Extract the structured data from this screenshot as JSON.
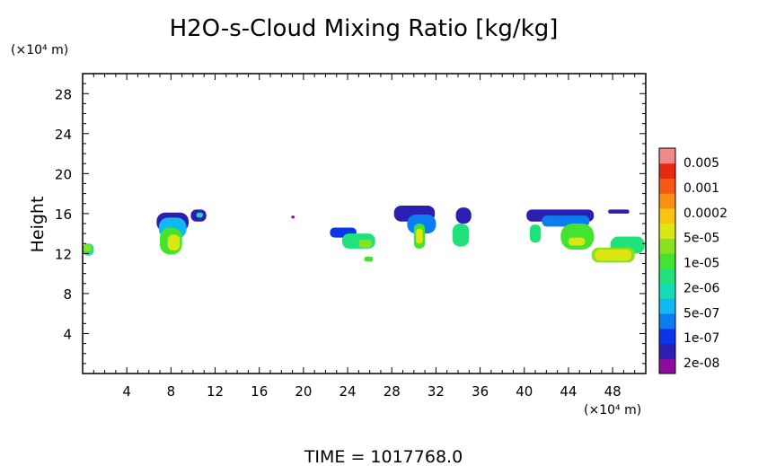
{
  "chart_data": {
    "type": "heatmap",
    "title": "H2O-s-Cloud Mixing Ratio [kg/kg]",
    "ylabel": "Height",
    "y_unit": "(×10⁴ m)",
    "x_unit": "(×10⁴ m)",
    "xlim": [
      0,
      51
    ],
    "ylim": [
      0,
      30
    ],
    "x_ticks": [
      "4",
      "8",
      "12",
      "16",
      "20",
      "24",
      "28",
      "32",
      "36",
      "40",
      "44",
      "48"
    ],
    "y_ticks": [
      "4",
      "8",
      "12",
      "16",
      "20",
      "24",
      "28"
    ],
    "colorbar_labels": [
      "0.005",
      "0.001",
      "0.0002",
      "5e-05",
      "1e-05",
      "2e-06",
      "5e-07",
      "1e-07",
      "2e-08"
    ],
    "colorbar_colors": [
      "#8c0ca0",
      "#2a1fb0",
      "#0a36e8",
      "#0c7df0",
      "#11b8f2",
      "#13ddb5",
      "#1fe27a",
      "#44e330",
      "#8ae21e",
      "#dbe712",
      "#fbc40e",
      "#f89012",
      "#f45a14",
      "#e62a10",
      "#f08a8a"
    ],
    "footer": "TIME = 1017768.0",
    "cloud_cells": [
      {
        "x": [
          6.7,
          9.6
        ],
        "y": [
          14.2,
          16.1
        ],
        "level": 1
      },
      {
        "x": [
          6.9,
          9.4
        ],
        "y": [
          13.5,
          15.6
        ],
        "level": 4
      },
      {
        "x": [
          7.0,
          9.0
        ],
        "y": [
          11.9,
          14.6
        ],
        "level": 7
      },
      {
        "x": [
          7.7,
          8.8
        ],
        "y": [
          12.3,
          13.9
        ],
        "level": 9
      },
      {
        "x": [
          9.8,
          11.2
        ],
        "y": [
          15.2,
          16.4
        ],
        "level": 1
      },
      {
        "x": [
          10.3,
          10.9
        ],
        "y": [
          15.6,
          16.1
        ],
        "level": 5
      },
      {
        "x": [
          0.0,
          1.0
        ],
        "y": [
          11.8,
          13.0
        ],
        "level": 6
      },
      {
        "x": [
          0.0,
          0.8
        ],
        "y": [
          12.2,
          12.9
        ],
        "level": 8
      },
      {
        "x": [
          22.4,
          24.8
        ],
        "y": [
          13.6,
          14.6
        ],
        "level": 2
      },
      {
        "x": [
          23.5,
          26.5
        ],
        "y": [
          12.5,
          14.0
        ],
        "level": 6
      },
      {
        "x": [
          25.0,
          26.2
        ],
        "y": [
          12.6,
          13.4
        ],
        "level": 8
      },
      {
        "x": [
          25.5,
          26.3
        ],
        "y": [
          11.2,
          11.7
        ],
        "level": 7
      },
      {
        "x": [
          28.2,
          31.9
        ],
        "y": [
          15.2,
          16.8
        ],
        "level": 1
      },
      {
        "x": [
          29.4,
          32.0
        ],
        "y": [
          14.0,
          15.9
        ],
        "level": 3
      },
      {
        "x": [
          30.0,
          31.0
        ],
        "y": [
          12.5,
          15.0
        ],
        "level": 7
      },
      {
        "x": [
          30.2,
          30.8
        ],
        "y": [
          13.0,
          14.5
        ],
        "level": 9
      },
      {
        "x": [
          33.8,
          35.2
        ],
        "y": [
          15.0,
          16.6
        ],
        "level": 1
      },
      {
        "x": [
          33.5,
          35.0
        ],
        "y": [
          12.7,
          15.0
        ],
        "level": 6
      },
      {
        "x": [
          40.2,
          46.3
        ],
        "y": [
          15.2,
          16.4
        ],
        "level": 1
      },
      {
        "x": [
          41.6,
          45.9
        ],
        "y": [
          14.7,
          15.8
        ],
        "level": 3
      },
      {
        "x": [
          40.5,
          41.5
        ],
        "y": [
          13.1,
          14.9
        ],
        "level": 6
      },
      {
        "x": [
          43.3,
          46.3
        ],
        "y": [
          12.4,
          15.0
        ],
        "level": 7
      },
      {
        "x": [
          44.0,
          45.5
        ],
        "y": [
          12.8,
          13.6
        ],
        "level": 9
      },
      {
        "x": [
          47.8,
          50.9
        ],
        "y": [
          12.0,
          13.7
        ],
        "level": 6
      },
      {
        "x": [
          46.1,
          50.0
        ],
        "y": [
          11.1,
          12.6
        ],
        "level": 8
      },
      {
        "x": [
          46.4,
          49.7
        ],
        "y": [
          11.3,
          12.4
        ],
        "level": 9
      },
      {
        "x": [
          47.6,
          49.5
        ],
        "y": [
          16.0,
          16.4
        ],
        "level": 1
      },
      {
        "x": [
          18.9,
          19.2
        ],
        "y": [
          15.5,
          15.8
        ],
        "level": 0
      }
    ]
  }
}
